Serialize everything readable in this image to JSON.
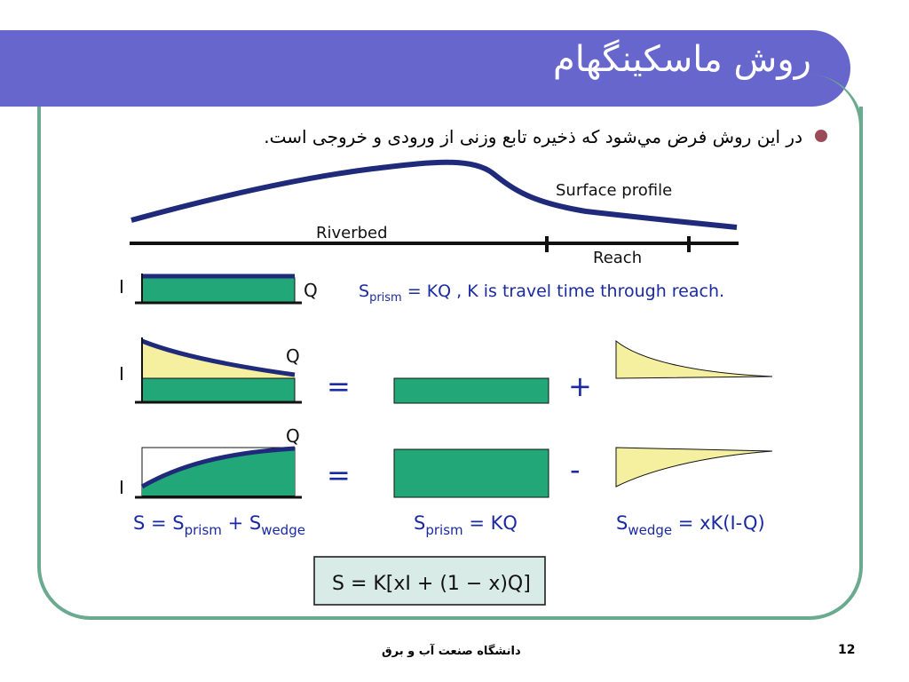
{
  "title": "روش ماسکینگهام",
  "bullet_text": "در این روش فرض مي‌شود که ذخیره تابع وزنی از ورودی و خروجی است.",
  "labels": {
    "surface_profile": "Surface profile",
    "riverbed": "Riverbed",
    "reach": "Reach",
    "I": "I",
    "Q": "Q",
    "S": "S",
    "prism": "prism",
    "wedge": "wedge",
    "prism_eq_rest": " = KQ ,   K is travel time through  reach.",
    "equals": "=",
    "plus": "+",
    "minus": "-",
    "s_eq": "S = S",
    "plus_s": " + S",
    "kq": " = KQ",
    "wedge_eq": " = xK(I-Q)",
    "final_formula": "S = K[xI + (1 − x)Q]"
  },
  "footer": {
    "university": "دانشگاه صنعت آب و برق",
    "page_number": "12"
  },
  "colors": {
    "title_bar": "#6666cc",
    "frame": "#6aaa8f",
    "green_fill": "#22a878",
    "yellow_fill": "#f5f0a0",
    "navy_line": "#1f2a7a",
    "blue_text": "#1a2aa0",
    "formula_bg": "#d9ebe6"
  }
}
